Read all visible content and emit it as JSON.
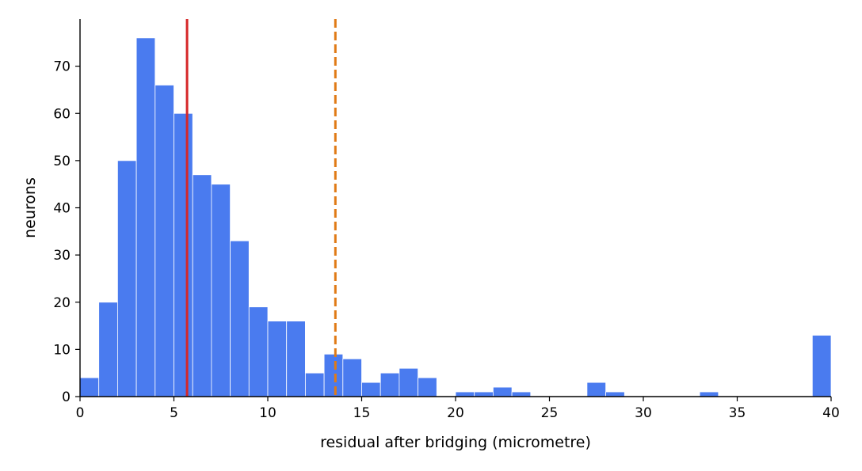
{
  "chart_data": {
    "type": "bar",
    "title": "",
    "xlabel": "residual after bridging  (micrometre)",
    "ylabel": "neurons",
    "xlim": [
      0,
      40
    ],
    "ylim": [
      0,
      80
    ],
    "bin_width": 1,
    "bins": [
      {
        "x0": 0,
        "count": 4
      },
      {
        "x0": 1,
        "count": 20
      },
      {
        "x0": 2,
        "count": 50
      },
      {
        "x0": 3,
        "count": 76
      },
      {
        "x0": 4,
        "count": 66
      },
      {
        "x0": 5,
        "count": 60
      },
      {
        "x0": 6,
        "count": 47
      },
      {
        "x0": 7,
        "count": 45
      },
      {
        "x0": 8,
        "count": 33
      },
      {
        "x0": 9,
        "count": 19
      },
      {
        "x0": 10,
        "count": 16
      },
      {
        "x0": 11,
        "count": 16
      },
      {
        "x0": 12,
        "count": 5
      },
      {
        "x0": 13,
        "count": 9
      },
      {
        "x0": 14,
        "count": 8
      },
      {
        "x0": 15,
        "count": 3
      },
      {
        "x0": 16,
        "count": 5
      },
      {
        "x0": 17,
        "count": 6
      },
      {
        "x0": 18,
        "count": 4
      },
      {
        "x0": 20,
        "count": 1
      },
      {
        "x0": 21,
        "count": 1
      },
      {
        "x0": 22,
        "count": 2
      },
      {
        "x0": 23,
        "count": 1
      },
      {
        "x0": 27,
        "count": 3
      },
      {
        "x0": 28,
        "count": 1
      },
      {
        "x0": 33,
        "count": 1
      },
      {
        "x0": 39,
        "count": 13
      }
    ],
    "xticks": [
      0,
      5,
      10,
      15,
      20,
      25,
      30,
      35,
      40
    ],
    "yticks": [
      0,
      10,
      20,
      30,
      40,
      50,
      60,
      70
    ],
    "vlines": [
      {
        "x": 5.7,
        "style": "solid",
        "color": "#d62728"
      },
      {
        "x": 13.6,
        "style": "dashed",
        "color": "#e07b16"
      }
    ],
    "colors": {
      "bar": "#4a7bef",
      "bar_edge": "#ffffff",
      "axis": "#000000"
    },
    "grid": false,
    "legend": "none"
  }
}
